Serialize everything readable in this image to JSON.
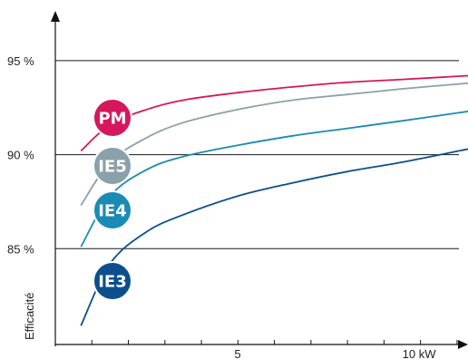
{
  "chart_data": {
    "type": "line",
    "title": "",
    "xlabel": "",
    "ylabel": "Efficacité",
    "x_ticks": [
      {
        "value": 5,
        "label": "5"
      },
      {
        "value": 10,
        "label": "10 kW"
      }
    ],
    "y_ticks": [
      {
        "value": 85,
        "label": "85 %"
      },
      {
        "value": 90,
        "label": "90 %"
      },
      {
        "value": 95,
        "label": "95 %"
      }
    ],
    "xlim": [
      0,
      11.3
    ],
    "ylim": [
      79.9,
      97.6
    ],
    "grid": "horizontal lines at 85, 90 and 95",
    "series": [
      {
        "name": "PM",
        "color": "#d6175d",
        "x": [
          0.7,
          1.5,
          2.5,
          3.5,
          5,
          6.5,
          8,
          9.5,
          11.3
        ],
        "y": [
          90.2,
          91.6,
          92.4,
          92.9,
          93.3,
          93.6,
          93.85,
          94.0,
          94.2
        ]
      },
      {
        "name": "IE5",
        "color": "#8aa1ab",
        "x": [
          0.7,
          1.5,
          2.5,
          3.5,
          5,
          6.5,
          8,
          9.5,
          11.3
        ],
        "y": [
          87.3,
          89.6,
          90.9,
          91.7,
          92.4,
          92.9,
          93.2,
          93.5,
          93.8
        ]
      },
      {
        "name": "IE4",
        "color": "#1a8bb4",
        "x": [
          0.7,
          1.5,
          2.5,
          3.5,
          5,
          6.5,
          8,
          9.5,
          11.3
        ],
        "y": [
          85.1,
          87.8,
          89.2,
          89.9,
          90.5,
          91.0,
          91.4,
          91.8,
          92.3
        ]
      },
      {
        "name": "IE3",
        "color": "#0c4f8c",
        "x": [
          0.7,
          1.5,
          2.5,
          3.5,
          5,
          6.5,
          8,
          9.5,
          11.3
        ],
        "y": [
          80.9,
          84.2,
          85.9,
          86.8,
          87.8,
          88.5,
          89.1,
          89.6,
          90.3
        ]
      }
    ]
  }
}
